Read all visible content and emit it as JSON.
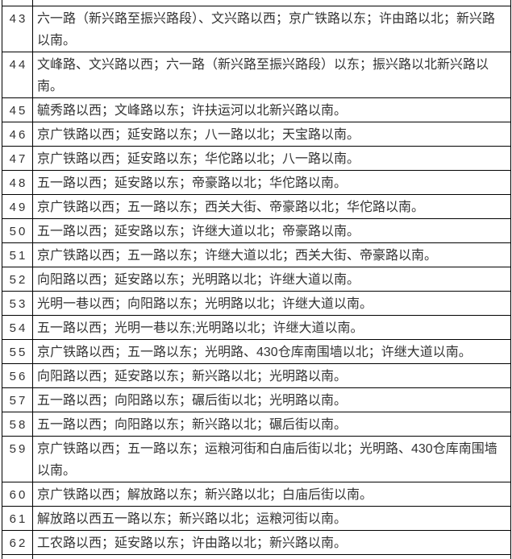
{
  "colors": {
    "border": "#000000",
    "text": "#333333",
    "background": "#ffffff"
  },
  "table": {
    "columns": [
      "number",
      "boundary_description"
    ],
    "rows": [
      {
        "num": "43",
        "text": "六一路（新兴路至振兴路段）、文兴路以西；京广铁路以东；许由路以北；新兴路以南。"
      },
      {
        "num": "44",
        "text": "文峰路、文兴路以西；六一路（新兴路至振兴路段）以东；振兴路以北新兴路以南。"
      },
      {
        "num": "45",
        "text": "毓秀路以西；文峰路以东；许扶运河以北新兴路以南。"
      },
      {
        "num": "46",
        "text": "京广铁路以西；延安路以东；八一路以北；天宝路以南。"
      },
      {
        "num": "47",
        "text": "京广铁路以西；延安路以东；华佗路以北；八一路以南。"
      },
      {
        "num": "48",
        "text": "五一路以西；延安路以东；帝豪路以北；华佗路以南。"
      },
      {
        "num": "49",
        "text": "京广铁路以西；五一路以东；西关大街、帝豪路以北；华佗路以南。"
      },
      {
        "num": "50",
        "text": "五一路以西；延安路以东；许继大道以北；帝豪路以南。"
      },
      {
        "num": "51",
        "text": "京广铁路以西；五一路以东；许继大道以北；西关大街、帝豪路以南。"
      },
      {
        "num": "52",
        "text": "向阳路以西；延安路以东；光明路以北；许继大道以南。"
      },
      {
        "num": "53",
        "text": "光明一巷以西；向阳路以东；光明路以北；许继大道以南。"
      },
      {
        "num": "54",
        "text": "五一路以西；光明一巷以东;光明路以北；许继大道以南。"
      },
      {
        "num": "55",
        "text": "京广铁路以西；五一路以东；光明路、430仓库南围墙以北；许继大道以南。"
      },
      {
        "num": "56",
        "text": "向阳路以西；延安路以东；新兴路以北；光明路以南。"
      },
      {
        "num": "57",
        "text": "五一路以西；向阳路以东；碾后街以北；光明路以南。"
      },
      {
        "num": "58",
        "text": "五一路以西；向阳路以东；新兴路以北；碾后街以南。"
      },
      {
        "num": "59",
        "text": "京广铁路以西；五一路以东；运粮河街和白庙后街以北；光明路、430仓库南围墙以南。"
      },
      {
        "num": "60",
        "text": "京广铁路以西；解放路以东；新兴路以北；白庙后街以南。"
      },
      {
        "num": "61",
        "text": "解放路以西五一路以东；新兴路以北；运粮河街以南。"
      },
      {
        "num": "62",
        "text": "工农路以西；延安路以东；许由路以北；新兴路以南。"
      }
    ]
  }
}
